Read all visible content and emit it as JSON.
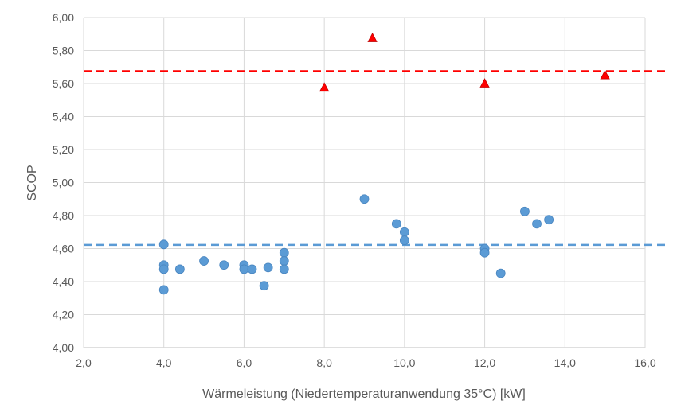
{
  "chart_data": {
    "type": "scatter",
    "title": "",
    "xlabel": "Wärmeleistung (Niedertemperaturanwendung 35°C) [kW]",
    "ylabel": "SCOP",
    "xlim": [
      2.0,
      16.0
    ],
    "ylim": [
      4.0,
      6.0
    ],
    "xticks": [
      "2,0",
      "4,0",
      "6,0",
      "8,0",
      "10,0",
      "12,0",
      "14,0",
      "16,0"
    ],
    "yticks": [
      "4,00",
      "4,20",
      "4,40",
      "4,60",
      "4,80",
      "5,00",
      "5,20",
      "5,40",
      "5,60",
      "5,80",
      "6,00"
    ],
    "grid": true,
    "series": [
      {
        "name": "blue-circles",
        "marker": "circle",
        "color": "#5B9BD5",
        "points": [
          [
            4.0,
            4.625
          ],
          [
            4.0,
            4.5
          ],
          [
            4.0,
            4.475
          ],
          [
            4.0,
            4.35
          ],
          [
            4.4,
            4.475
          ],
          [
            5.0,
            4.525
          ],
          [
            5.5,
            4.5
          ],
          [
            6.0,
            4.5
          ],
          [
            6.0,
            4.475
          ],
          [
            6.2,
            4.475
          ],
          [
            6.5,
            4.375
          ],
          [
            6.6,
            4.485
          ],
          [
            7.0,
            4.575
          ],
          [
            7.0,
            4.525
          ],
          [
            7.0,
            4.475
          ],
          [
            9.0,
            4.9
          ],
          [
            9.8,
            4.75
          ],
          [
            10.0,
            4.7
          ],
          [
            10.0,
            4.65
          ],
          [
            12.0,
            4.6
          ],
          [
            12.0,
            4.575
          ],
          [
            12.4,
            4.45
          ],
          [
            13.0,
            4.825
          ],
          [
            13.3,
            4.75
          ],
          [
            13.6,
            4.775
          ]
        ]
      },
      {
        "name": "red-triangles",
        "marker": "triangle",
        "color": "#FF0000",
        "points": [
          [
            8.0,
            5.575
          ],
          [
            9.2,
            5.875
          ],
          [
            12.0,
            5.6
          ],
          [
            15.0,
            5.65
          ]
        ]
      }
    ],
    "reference_lines": [
      {
        "name": "red-average",
        "y": 5.675,
        "color": "#FF0000"
      },
      {
        "name": "blue-average",
        "y": 4.622,
        "color": "#5B9BD5"
      }
    ]
  }
}
